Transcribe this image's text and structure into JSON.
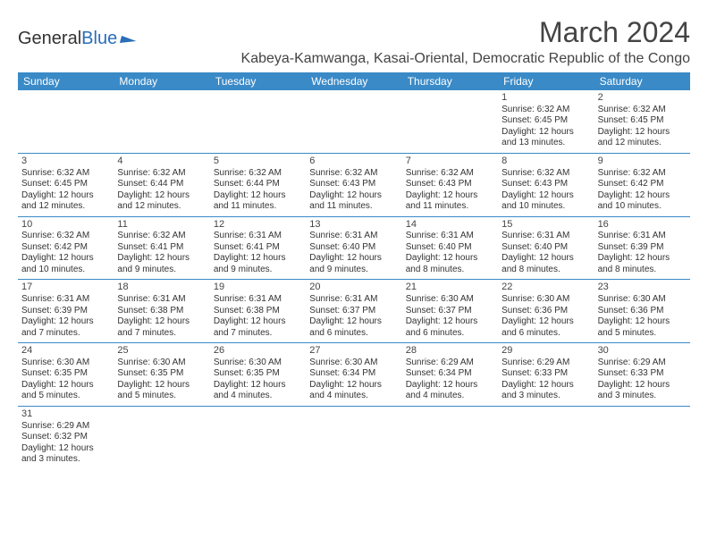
{
  "logo": {
    "part1": "General",
    "part2": "Blue"
  },
  "title": "March 2024",
  "location": "Kabeya-Kamwanga, Kasai-Oriental, Democratic Republic of the Congo",
  "weekdays": [
    "Sunday",
    "Monday",
    "Tuesday",
    "Wednesday",
    "Thursday",
    "Friday",
    "Saturday"
  ],
  "style": {
    "header_bg": "#3a8ac7",
    "header_fg": "#ffffff",
    "border_color": "#3a8ac7",
    "body_bg": "#ffffff",
    "text_color": "#333333",
    "title_fontsize": 32,
    "location_fontsize": 16,
    "weekday_fontsize": 12,
    "cell_fontsize": 10
  },
  "weeks": [
    [
      {
        "n": "",
        "l1": "",
        "l2": "",
        "l3": "",
        "l4": ""
      },
      {
        "n": "",
        "l1": "",
        "l2": "",
        "l3": "",
        "l4": ""
      },
      {
        "n": "",
        "l1": "",
        "l2": "",
        "l3": "",
        "l4": ""
      },
      {
        "n": "",
        "l1": "",
        "l2": "",
        "l3": "",
        "l4": ""
      },
      {
        "n": "",
        "l1": "",
        "l2": "",
        "l3": "",
        "l4": ""
      },
      {
        "n": "1",
        "l1": "Sunrise: 6:32 AM",
        "l2": "Sunset: 6:45 PM",
        "l3": "Daylight: 12 hours",
        "l4": "and 13 minutes."
      },
      {
        "n": "2",
        "l1": "Sunrise: 6:32 AM",
        "l2": "Sunset: 6:45 PM",
        "l3": "Daylight: 12 hours",
        "l4": "and 12 minutes."
      }
    ],
    [
      {
        "n": "3",
        "l1": "Sunrise: 6:32 AM",
        "l2": "Sunset: 6:45 PM",
        "l3": "Daylight: 12 hours",
        "l4": "and 12 minutes."
      },
      {
        "n": "4",
        "l1": "Sunrise: 6:32 AM",
        "l2": "Sunset: 6:44 PM",
        "l3": "Daylight: 12 hours",
        "l4": "and 12 minutes."
      },
      {
        "n": "5",
        "l1": "Sunrise: 6:32 AM",
        "l2": "Sunset: 6:44 PM",
        "l3": "Daylight: 12 hours",
        "l4": "and 11 minutes."
      },
      {
        "n": "6",
        "l1": "Sunrise: 6:32 AM",
        "l2": "Sunset: 6:43 PM",
        "l3": "Daylight: 12 hours",
        "l4": "and 11 minutes."
      },
      {
        "n": "7",
        "l1": "Sunrise: 6:32 AM",
        "l2": "Sunset: 6:43 PM",
        "l3": "Daylight: 12 hours",
        "l4": "and 11 minutes."
      },
      {
        "n": "8",
        "l1": "Sunrise: 6:32 AM",
        "l2": "Sunset: 6:43 PM",
        "l3": "Daylight: 12 hours",
        "l4": "and 10 minutes."
      },
      {
        "n": "9",
        "l1": "Sunrise: 6:32 AM",
        "l2": "Sunset: 6:42 PM",
        "l3": "Daylight: 12 hours",
        "l4": "and 10 minutes."
      }
    ],
    [
      {
        "n": "10",
        "l1": "Sunrise: 6:32 AM",
        "l2": "Sunset: 6:42 PM",
        "l3": "Daylight: 12 hours",
        "l4": "and 10 minutes."
      },
      {
        "n": "11",
        "l1": "Sunrise: 6:32 AM",
        "l2": "Sunset: 6:41 PM",
        "l3": "Daylight: 12 hours",
        "l4": "and 9 minutes."
      },
      {
        "n": "12",
        "l1": "Sunrise: 6:31 AM",
        "l2": "Sunset: 6:41 PM",
        "l3": "Daylight: 12 hours",
        "l4": "and 9 minutes."
      },
      {
        "n": "13",
        "l1": "Sunrise: 6:31 AM",
        "l2": "Sunset: 6:40 PM",
        "l3": "Daylight: 12 hours",
        "l4": "and 9 minutes."
      },
      {
        "n": "14",
        "l1": "Sunrise: 6:31 AM",
        "l2": "Sunset: 6:40 PM",
        "l3": "Daylight: 12 hours",
        "l4": "and 8 minutes."
      },
      {
        "n": "15",
        "l1": "Sunrise: 6:31 AM",
        "l2": "Sunset: 6:40 PM",
        "l3": "Daylight: 12 hours",
        "l4": "and 8 minutes."
      },
      {
        "n": "16",
        "l1": "Sunrise: 6:31 AM",
        "l2": "Sunset: 6:39 PM",
        "l3": "Daylight: 12 hours",
        "l4": "and 8 minutes."
      }
    ],
    [
      {
        "n": "17",
        "l1": "Sunrise: 6:31 AM",
        "l2": "Sunset: 6:39 PM",
        "l3": "Daylight: 12 hours",
        "l4": "and 7 minutes."
      },
      {
        "n": "18",
        "l1": "Sunrise: 6:31 AM",
        "l2": "Sunset: 6:38 PM",
        "l3": "Daylight: 12 hours",
        "l4": "and 7 minutes."
      },
      {
        "n": "19",
        "l1": "Sunrise: 6:31 AM",
        "l2": "Sunset: 6:38 PM",
        "l3": "Daylight: 12 hours",
        "l4": "and 7 minutes."
      },
      {
        "n": "20",
        "l1": "Sunrise: 6:31 AM",
        "l2": "Sunset: 6:37 PM",
        "l3": "Daylight: 12 hours",
        "l4": "and 6 minutes."
      },
      {
        "n": "21",
        "l1": "Sunrise: 6:30 AM",
        "l2": "Sunset: 6:37 PM",
        "l3": "Daylight: 12 hours",
        "l4": "and 6 minutes."
      },
      {
        "n": "22",
        "l1": "Sunrise: 6:30 AM",
        "l2": "Sunset: 6:36 PM",
        "l3": "Daylight: 12 hours",
        "l4": "and 6 minutes."
      },
      {
        "n": "23",
        "l1": "Sunrise: 6:30 AM",
        "l2": "Sunset: 6:36 PM",
        "l3": "Daylight: 12 hours",
        "l4": "and 5 minutes."
      }
    ],
    [
      {
        "n": "24",
        "l1": "Sunrise: 6:30 AM",
        "l2": "Sunset: 6:35 PM",
        "l3": "Daylight: 12 hours",
        "l4": "and 5 minutes."
      },
      {
        "n": "25",
        "l1": "Sunrise: 6:30 AM",
        "l2": "Sunset: 6:35 PM",
        "l3": "Daylight: 12 hours",
        "l4": "and 5 minutes."
      },
      {
        "n": "26",
        "l1": "Sunrise: 6:30 AM",
        "l2": "Sunset: 6:35 PM",
        "l3": "Daylight: 12 hours",
        "l4": "and 4 minutes."
      },
      {
        "n": "27",
        "l1": "Sunrise: 6:30 AM",
        "l2": "Sunset: 6:34 PM",
        "l3": "Daylight: 12 hours",
        "l4": "and 4 minutes."
      },
      {
        "n": "28",
        "l1": "Sunrise: 6:29 AM",
        "l2": "Sunset: 6:34 PM",
        "l3": "Daylight: 12 hours",
        "l4": "and 4 minutes."
      },
      {
        "n": "29",
        "l1": "Sunrise: 6:29 AM",
        "l2": "Sunset: 6:33 PM",
        "l3": "Daylight: 12 hours",
        "l4": "and 3 minutes."
      },
      {
        "n": "30",
        "l1": "Sunrise: 6:29 AM",
        "l2": "Sunset: 6:33 PM",
        "l3": "Daylight: 12 hours",
        "l4": "and 3 minutes."
      }
    ],
    [
      {
        "n": "31",
        "l1": "Sunrise: 6:29 AM",
        "l2": "Sunset: 6:32 PM",
        "l3": "Daylight: 12 hours",
        "l4": "and 3 minutes."
      },
      {
        "n": "",
        "l1": "",
        "l2": "",
        "l3": "",
        "l4": ""
      },
      {
        "n": "",
        "l1": "",
        "l2": "",
        "l3": "",
        "l4": ""
      },
      {
        "n": "",
        "l1": "",
        "l2": "",
        "l3": "",
        "l4": ""
      },
      {
        "n": "",
        "l1": "",
        "l2": "",
        "l3": "",
        "l4": ""
      },
      {
        "n": "",
        "l1": "",
        "l2": "",
        "l3": "",
        "l4": ""
      },
      {
        "n": "",
        "l1": "",
        "l2": "",
        "l3": "",
        "l4": ""
      }
    ]
  ]
}
